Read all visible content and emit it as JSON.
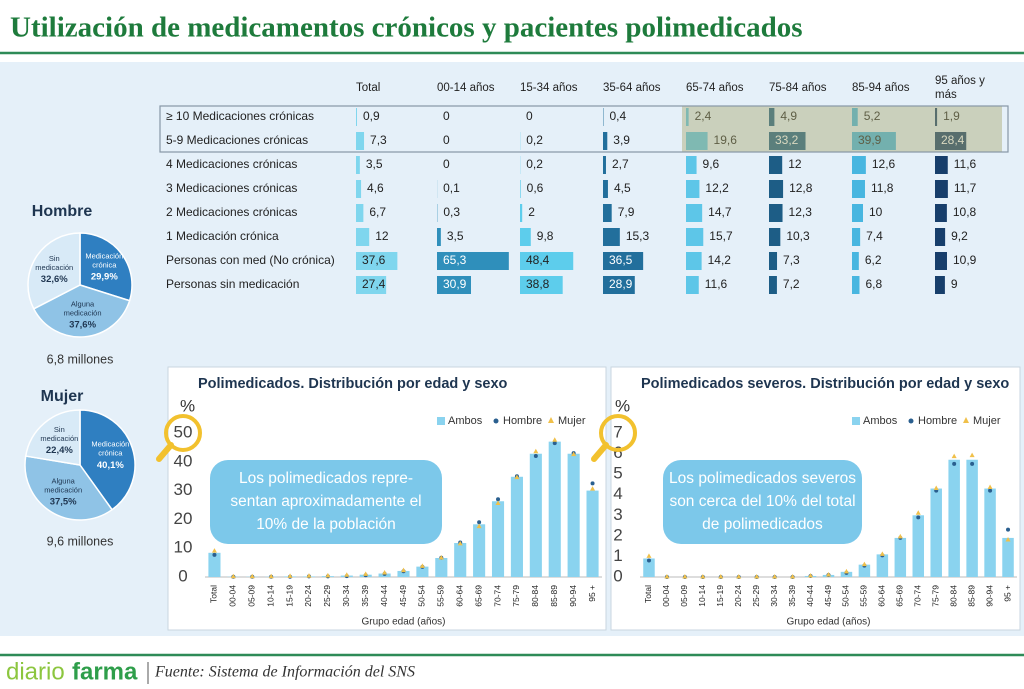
{
  "header": {
    "title": "Utilización de medicamentos crónicos y pacientes polimedicados"
  },
  "table": {
    "columns": [
      "Total",
      "00-14 años",
      "15-34 años",
      "35-64 años",
      "65-74 años",
      "75-84 años",
      "85-94 años",
      "95 años y más"
    ],
    "column_colors": [
      "#7fd6ee",
      "#2f8fbb",
      "#5dcdec",
      "#226f9c",
      "#5dc6e8",
      "#1d5d86",
      "#48b6e0",
      "#173e6b"
    ],
    "rows": [
      {
        "label": "≥ 10 Medicaciones crónicas",
        "values": [
          0.9,
          0,
          0,
          0.4,
          2.4,
          4.9,
          5.2,
          1.9
        ],
        "value_labels": [
          "0,9",
          "0",
          "0",
          "0,4",
          "2,4",
          "4,9",
          "5,2",
          "1,9"
        ]
      },
      {
        "label": "5-9 Medicaciones crónicas",
        "values": [
          7.3,
          0,
          0.2,
          3.9,
          19.6,
          33.2,
          39.9,
          28.4
        ],
        "value_labels": [
          "7,3",
          "0",
          "0,2",
          "3,9",
          "19,6",
          "33,2",
          "39,9",
          "28,4"
        ]
      },
      {
        "label": "4 Medicaciones crónicas",
        "values": [
          3.5,
          0,
          0.2,
          2.7,
          9.6,
          12,
          12.6,
          11.6
        ],
        "value_labels": [
          "3,5",
          "0",
          "0,2",
          "2,7",
          "9,6",
          "12",
          "12,6",
          "11,6"
        ]
      },
      {
        "label": "3 Medicaciones crónicas",
        "values": [
          4.6,
          0.1,
          0.6,
          4.5,
          12.2,
          12.8,
          11.8,
          11.7
        ],
        "value_labels": [
          "4,6",
          "0,1",
          "0,6",
          "4,5",
          "12,2",
          "12,8",
          "11,8",
          "11,7"
        ]
      },
      {
        "label": "2 Medicaciones crónicas",
        "values": [
          6.7,
          0.3,
          2,
          7.9,
          14.7,
          12.3,
          10,
          10.8
        ],
        "value_labels": [
          "6,7",
          "0,3",
          "2",
          "7,9",
          "14,7",
          "12,3",
          "10",
          "10,8"
        ]
      },
      {
        "label": "1 Medicación crónica",
        "values": [
          12,
          3.5,
          9.8,
          15.3,
          15.7,
          10.3,
          7.4,
          9.2
        ],
        "value_labels": [
          "12",
          "3,5",
          "9,8",
          "15,3",
          "15,7",
          "10,3",
          "7,4",
          "9,2"
        ]
      },
      {
        "label": "Personas con med (No crónica)",
        "values": [
          37.6,
          65.3,
          48.4,
          36.5,
          14.2,
          7.3,
          6.2,
          10.9
        ],
        "value_labels": [
          "37,6",
          "65,3",
          "48,4",
          "36,5",
          "14,2",
          "7,3",
          "6,2",
          "10,9"
        ]
      },
      {
        "label": "Personas sin medicación",
        "values": [
          27.4,
          30.9,
          38.8,
          28.9,
          11.6,
          7.2,
          6.8,
          9
        ],
        "value_labels": [
          "27,4",
          "30,9",
          "38,8",
          "28,9",
          "11,6",
          "7,2",
          "6,8",
          "9"
        ]
      }
    ]
  },
  "chart_data": [
    {
      "type": "pie",
      "title": "Hombre",
      "caption": "6,8 millones",
      "categories": [
        "Medicación crónica",
        "Alguna medicación",
        "Sin medicación"
      ],
      "values": [
        29.9,
        37.6,
        32.6
      ],
      "value_labels": [
        "29,9%",
        "37,6%",
        "32,6%"
      ],
      "colors": [
        "#2f7fc1",
        "#8fc3e6",
        "#d8eaf7"
      ]
    },
    {
      "type": "pie",
      "title": "Mujer",
      "caption": "9,6 millones",
      "categories": [
        "Medicación crónica",
        "Alguna medicación",
        "Sin medicación"
      ],
      "values": [
        40.1,
        37.5,
        22.4
      ],
      "value_labels": [
        "40,1%",
        "37,5%",
        "22,4%"
      ],
      "colors": [
        "#2f7fc1",
        "#8fc3e6",
        "#d8eaf7"
      ]
    },
    {
      "type": "bar",
      "title": "Polimedicados. Distribución por edad y sexo",
      "y_unit": "%",
      "x_label": "Grupo edad (años)",
      "annotation": [
        "Los polimedicados repre-",
        "sentan aproximadamente el",
        "10% de la población"
      ],
      "categories": [
        "Total",
        "00-04",
        "05-09",
        "10-14",
        "15-19",
        "20-24",
        "25-29",
        "30-34",
        "35-39",
        "40-44",
        "45-49",
        "50-54",
        "55-59",
        "60-64",
        "65-69",
        "70-74",
        "75-79",
        "80-84",
        "85-89",
        "90-94",
        "95 +"
      ],
      "series": [
        {
          "name": "Ambos",
          "type": "bar",
          "color": "#8ad3ef",
          "values": [
            8.4,
            0.1,
            0.1,
            0.1,
            0.2,
            0.2,
            0.3,
            0.5,
            0.8,
            1.2,
            2.1,
            3.6,
            6.6,
            11.8,
            18.3,
            26.3,
            34.8,
            42.8,
            47.0,
            42.8,
            30.0
          ]
        },
        {
          "name": "Hombre",
          "type": "scatter",
          "marker": "circle",
          "color": "#2a5f8f",
          "values": [
            7.7,
            0.1,
            0.1,
            0.1,
            0.1,
            0.2,
            0.2,
            0.3,
            0.6,
            1.1,
            2.0,
            3.5,
            6.7,
            12.0,
            19.0,
            27.0,
            35.0,
            42.0,
            46.5,
            43.0,
            32.5
          ]
        },
        {
          "name": "Mujer",
          "type": "scatter",
          "marker": "triangle",
          "color": "#f0c04a",
          "values": [
            9.0,
            0.1,
            0.1,
            0.1,
            0.2,
            0.3,
            0.4,
            0.6,
            0.9,
            1.4,
            2.2,
            3.7,
            6.6,
            11.5,
            17.5,
            25.5,
            34.5,
            43.5,
            47.5,
            42.5,
            30.5
          ]
        }
      ],
      "ylim": [
        0,
        50
      ],
      "yticks": [
        0,
        10,
        20,
        30,
        40,
        50
      ],
      "grid": false
    },
    {
      "type": "bar",
      "title": "Polimedicados severos. Distribución por edad y sexo",
      "y_unit": "%",
      "x_label": "Grupo edad (años)",
      "annotation": [
        "Los polimedicados severos",
        "son cerca del 10% del total",
        "de polimedicados"
      ],
      "categories": [
        "Total",
        "00-04",
        "05-09",
        "10-14",
        "15-19",
        "20-24",
        "25-29",
        "30-34",
        "35-39",
        "40-44",
        "45-49",
        "50-54",
        "55-59",
        "60-64",
        "65-69",
        "70-74",
        "75-79",
        "80-84",
        "85-89",
        "90-94",
        "95 +"
      ],
      "series": [
        {
          "name": "Ambos",
          "type": "bar",
          "color": "#8ad3ef",
          "values": [
            0.9,
            0,
            0,
            0,
            0,
            0,
            0,
            0,
            0,
            0.05,
            0.1,
            0.25,
            0.6,
            1.1,
            1.9,
            3.0,
            4.3,
            5.7,
            5.7,
            4.3,
            1.9
          ]
        },
        {
          "name": "Hombre",
          "type": "scatter",
          "marker": "circle",
          "color": "#2a5f8f",
          "values": [
            0.8,
            0,
            0,
            0,
            0,
            0,
            0,
            0,
            0,
            0.05,
            0.1,
            0.2,
            0.55,
            1.05,
            1.9,
            2.9,
            4.2,
            5.5,
            5.5,
            4.2,
            2.3
          ]
        },
        {
          "name": "Mujer",
          "type": "scatter",
          "marker": "triangle",
          "color": "#f0c04a",
          "values": [
            1.0,
            0,
            0,
            0,
            0,
            0,
            0,
            0,
            0,
            0.05,
            0.1,
            0.25,
            0.6,
            1.1,
            1.95,
            3.1,
            4.3,
            5.85,
            5.9,
            4.35,
            1.8
          ]
        }
      ],
      "ylim": [
        0,
        7
      ],
      "yticks": [
        0,
        1,
        2,
        3,
        4,
        5,
        6,
        7
      ],
      "grid": false
    }
  ],
  "footer": {
    "logo_parts": [
      "diario",
      "farma"
    ],
    "source": "Fuente: Sistema de Información del SNS"
  }
}
